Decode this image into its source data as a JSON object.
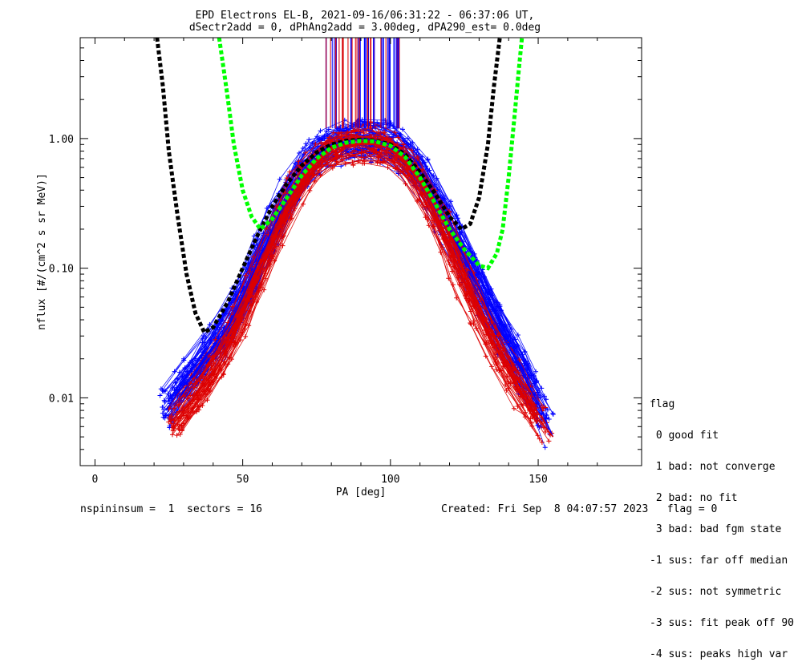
{
  "colors": {
    "series_a": "#0000ff",
    "series_b": "#dd0000",
    "fit_black": "#000000",
    "fit_green": "#00ff00"
  },
  "footer": {
    "left": "nspininsum =  1  sectors = 16",
    "right": "Created: Fri Sep  8 04:07:57 2023   flag = 0"
  },
  "legend": {
    "heading": "flag",
    "items": [
      " 0 good fit",
      " 1 bad: not converge",
      " 2 bad: no fit",
      " 3 bad: bad fgm state",
      "-1 sus: far off median",
      "-2 sus: not symmetric",
      "-3 sus: fit peak off 90",
      "-4 sus: peaks high var"
    ]
  },
  "chart_data": {
    "type": "line",
    "title": "EPD Electrons EL-B, 2021-09-16/06:31:22 - 06:37:06 UT,",
    "subtitle": "dSectr2add = 0, dPhAng2add = 3.00deg, dPA290_est=   0.0deg",
    "xlabel": "PA [deg]",
    "ylabel": "nflux [#/(cm^2 s sr MeV)]",
    "xlim": [
      -5,
      185
    ],
    "ylim": [
      0.003,
      6.0
    ],
    "yscale": "log",
    "grid": false,
    "legend_position": "right",
    "x_ticks": [
      0,
      50,
      100,
      150
    ],
    "x_tick_labels": [
      "0",
      "50",
      "100",
      "150"
    ],
    "y_ticks": [
      0.01,
      0.1,
      1.0
    ],
    "y_tick_labels": [
      "0.01",
      "0.10",
      "1.00"
    ],
    "series": [
      {
        "color": "#0000ff",
        "x": [
          24,
          28,
          33,
          38,
          45,
          50,
          55,
          60,
          65,
          70,
          75,
          80,
          85,
          90,
          95,
          100,
          105,
          110,
          115,
          120,
          125,
          130,
          135,
          140,
          145,
          150,
          155
        ],
        "y": [
          0.008,
          0.011,
          0.015,
          0.022,
          0.035,
          0.06,
          0.11,
          0.2,
          0.35,
          0.55,
          0.75,
          0.9,
          0.95,
          1.0,
          0.97,
          0.9,
          0.75,
          0.55,
          0.35,
          0.2,
          0.12,
          0.07,
          0.04,
          0.025,
          0.015,
          0.009,
          0.005
        ]
      },
      {
        "color": "#dd0000",
        "x": [
          26,
          30,
          35,
          40,
          45,
          50,
          55,
          60,
          65,
          70,
          75,
          80,
          85,
          90,
          95,
          100,
          105,
          110,
          115,
          120,
          125,
          130,
          135,
          140,
          145,
          150,
          155
        ],
        "y": [
          0.006,
          0.008,
          0.011,
          0.016,
          0.025,
          0.045,
          0.085,
          0.16,
          0.3,
          0.48,
          0.68,
          0.82,
          0.88,
          0.92,
          0.9,
          0.82,
          0.66,
          0.46,
          0.28,
          0.15,
          0.08,
          0.045,
          0.026,
          0.016,
          0.01,
          0.007,
          0.005
        ]
      },
      {
        "color": "#000000",
        "style": "dashed",
        "x": [
          21,
          23,
          25,
          28,
          31,
          34,
          37,
          40,
          45,
          50,
          55,
          60,
          65,
          70,
          75,
          80,
          85,
          90,
          95,
          100,
          105,
          110,
          115,
          120,
          124,
          127,
          130,
          133,
          135,
          137
        ],
        "y": [
          6.0,
          2.5,
          0.8,
          0.25,
          0.09,
          0.045,
          0.032,
          0.035,
          0.055,
          0.1,
          0.18,
          0.3,
          0.45,
          0.62,
          0.78,
          0.9,
          0.96,
          0.98,
          0.96,
          0.9,
          0.75,
          0.55,
          0.38,
          0.25,
          0.2,
          0.22,
          0.35,
          0.9,
          2.5,
          6.0
        ]
      },
      {
        "color": "#00ff00",
        "style": "dashed",
        "x": [
          42,
          43.5,
          45,
          47,
          50,
          53,
          56,
          60,
          65,
          70,
          75,
          80,
          85,
          90,
          95,
          100,
          105,
          110,
          115,
          120,
          125,
          130,
          133,
          136,
          138,
          140,
          142,
          143.5,
          144.5
        ],
        "y": [
          6.0,
          3.5,
          2.0,
          0.9,
          0.4,
          0.25,
          0.2,
          0.24,
          0.35,
          0.52,
          0.7,
          0.85,
          0.93,
          0.96,
          0.95,
          0.88,
          0.72,
          0.5,
          0.32,
          0.2,
          0.14,
          0.105,
          0.1,
          0.13,
          0.2,
          0.5,
          1.5,
          3.5,
          6.0
        ]
      }
    ]
  }
}
